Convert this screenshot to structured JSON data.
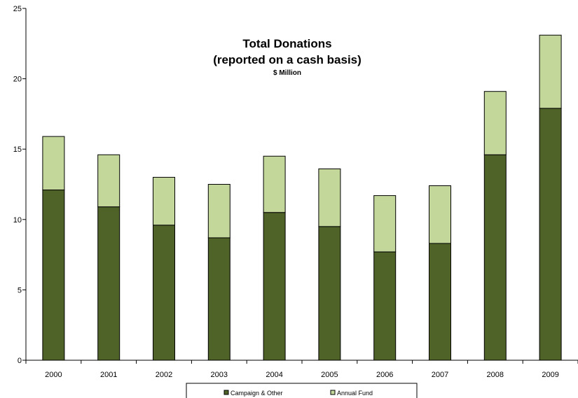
{
  "chart_data": {
    "type": "bar",
    "stacked": true,
    "title": "Total Donations",
    "subtitle": "(reported on a cash basis)",
    "units_label": "$ Million",
    "categories": [
      "2000",
      "2001",
      "2002",
      "2003",
      "2004",
      "2005",
      "2006",
      "2007",
      "2008",
      "2009"
    ],
    "series": [
      {
        "name": "Campaign & Other",
        "values": [
          12.1,
          10.9,
          9.6,
          8.7,
          10.5,
          9.5,
          7.7,
          8.3,
          14.6,
          17.9
        ],
        "color": "#4f6228"
      },
      {
        "name": "Annual Fund",
        "values": [
          3.8,
          3.7,
          3.4,
          3.8,
          4.0,
          4.1,
          4.0,
          4.1,
          4.5,
          5.2
        ],
        "color": "#c4d79b"
      }
    ],
    "ylim": [
      0,
      25
    ],
    "yticks": [
      0,
      5,
      10,
      15,
      20,
      25
    ],
    "grid": false,
    "legend_position": "bottom",
    "bar_outline": "#000000"
  }
}
